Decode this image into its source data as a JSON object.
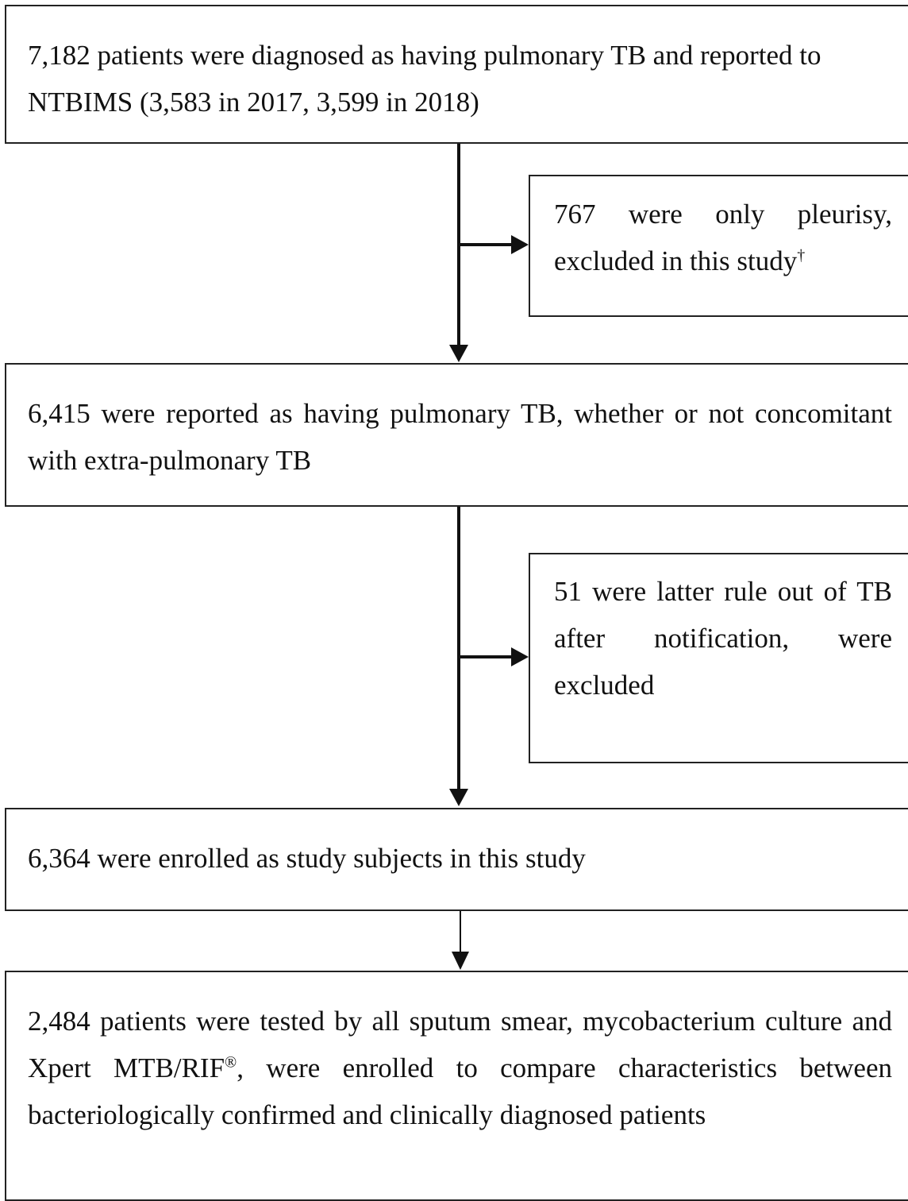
{
  "nodes": [
    {
      "label": "7,182 patients were diagnosed as having pulmonary TB and reported to NTBIMS (3,583 in 2017, 3,599 in 2018)"
    },
    {
      "label": "767 were only pleurisy, excluded in this study",
      "superscript": "†"
    },
    {
      "label": "6,415 were reported as having pulmonary TB, whether or not concomitant with extra-pulmonary TB"
    },
    {
      "label": "51 were latter rule out of TB after notification, were excluded"
    },
    {
      "label": "6,364 were enrolled as study subjects in this study"
    },
    {
      "label": "2,484 patients were tested by all sputum smear, mycobacterium culture and Xpert MTB/RIF",
      "superscript": "®",
      "label_end": ", were enrolled to compare characteristics between bacteriologically confirmed and clinically diagnosed patients"
    }
  ]
}
